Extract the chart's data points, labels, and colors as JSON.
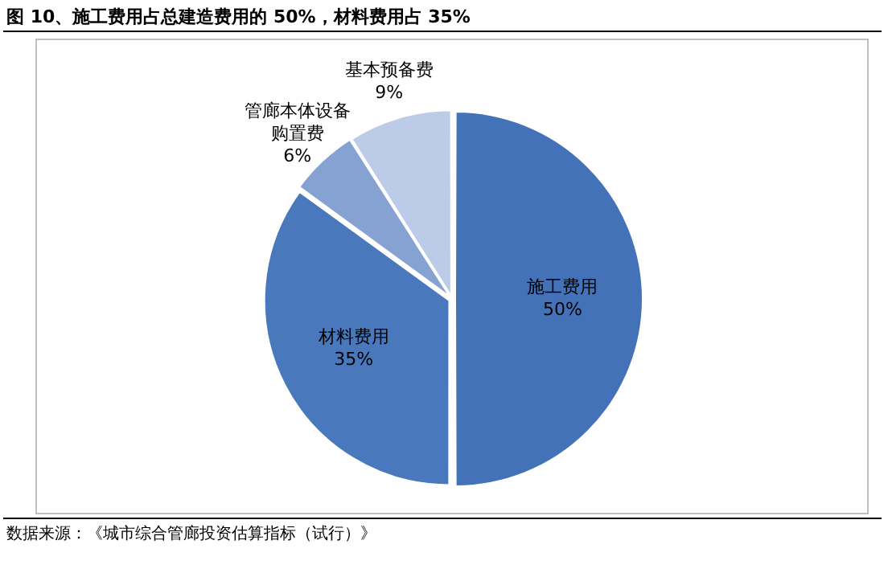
{
  "chart_data": {
    "type": "pie",
    "title": "图 10、施工费用占总建造费用的 50%，材料费用占 35%",
    "categories": [
      "施工费用",
      "材料费用",
      "管廊本体设备购置费",
      "基本预备费"
    ],
    "values": [
      50,
      35,
      6,
      9
    ],
    "value_labels": [
      "50%",
      "35%",
      "6%",
      "9%"
    ],
    "colors": [
      "#4472b8",
      "#4a78bd",
      "#86a2d2",
      "#bccbe8"
    ],
    "legend": false,
    "annotations": [
      "数据来源：《城市综合管廊投资估算指标（试行）》"
    ]
  }
}
